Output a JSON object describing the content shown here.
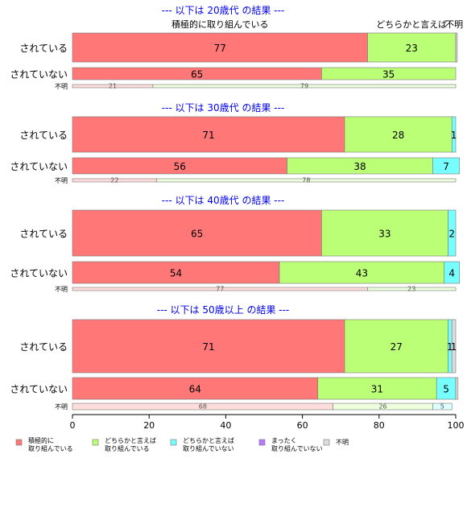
{
  "chart_data": {
    "type": "bar",
    "orientation": "horizontal",
    "stacked": true,
    "xlim": [
      0,
      100
    ],
    "x_ticks": [
      "0",
      "20",
      "40",
      "60",
      "80",
      "100"
    ],
    "legend": {
      "placement": "bottom",
      "entries": [
        {
          "key": "s1",
          "label": [
            "積極的に",
            "取り組んでいる"
          ],
          "color": "#ff7777"
        },
        {
          "key": "s2",
          "label": [
            "どちらかと言えば",
            "取り組んでいる"
          ],
          "color": "#bbff77"
        },
        {
          "key": "s3",
          "label": [
            "どちらかと言えば",
            "取り組んでいない"
          ],
          "color": "#77ffff"
        },
        {
          "key": "s4",
          "label": [
            "まったく",
            "取り組んでいない"
          ],
          "color": "#bb77ff"
        },
        {
          "key": "s5",
          "label": [
            "不明"
          ],
          "color": "#dddddd"
        }
      ]
    },
    "top_labels": [
      {
        "text": "積極的に取り組んでいる",
        "at": 38.5
      },
      {
        "text": "どちらかと言えば",
        "at": 88.5
      },
      {
        "text": "不明",
        "at": 99.6
      }
    ],
    "groups": [
      {
        "title": "--- 以下は 20歳代 の結果 ---",
        "rows": [
          {
            "label": "されている",
            "values": [
              77,
              23,
              0,
              0,
              0.4
            ],
            "labels": [
              "77",
              "23",
              "",
              "",
              ""
            ]
          },
          {
            "label": "されていない",
            "values": [
              65,
              35,
              0,
              0,
              0
            ],
            "labels": [
              "65",
              "35",
              "",
              "",
              ""
            ]
          },
          {
            "label": "不明",
            "values": [
              21,
              79,
              0,
              0,
              0
            ],
            "labels": [
              "21",
              "79",
              "",
              "",
              ""
            ]
          }
        ]
      },
      {
        "title": "--- 以下は 30歳代 の結果 ---",
        "rows": [
          {
            "label": "されている",
            "values": [
              71,
              28,
              1,
              0,
              0
            ],
            "labels": [
              "71",
              "28",
              "1",
              "",
              ""
            ]
          },
          {
            "label": "されていない",
            "values": [
              56,
              38,
              7,
              0,
              0
            ],
            "labels": [
              "56",
              "38",
              "7",
              "",
              ""
            ]
          },
          {
            "label": "不明",
            "values": [
              22,
              78,
              0,
              0,
              0
            ],
            "labels": [
              "22",
              "78",
              "",
              "",
              ""
            ]
          }
        ]
      },
      {
        "title": "--- 以下は 40歳代 の結果 ---",
        "rows": [
          {
            "label": "されている",
            "values": [
              65,
              33,
              2,
              0,
              0
            ],
            "labels": [
              "65",
              "33",
              "2",
              "",
              ""
            ]
          },
          {
            "label": "されていない",
            "values": [
              54,
              43,
              4,
              0,
              0
            ],
            "labels": [
              "54",
              "43",
              "4",
              "",
              ""
            ]
          },
          {
            "label": "不明",
            "values": [
              77,
              23,
              0,
              0,
              0
            ],
            "labels": [
              "77",
              "23",
              "",
              "",
              ""
            ]
          }
        ]
      },
      {
        "title": "--- 以下は 50歳以上 の結果 ---",
        "rows": [
          {
            "label": "されている",
            "values": [
              71,
              27,
              1,
              0,
              1
            ],
            "labels": [
              "71",
              "27",
              "1",
              "",
              "1"
            ]
          },
          {
            "label": "されていない",
            "values": [
              64,
              31,
              5,
              0,
              0.6
            ],
            "labels": [
              "64",
              "31",
              "5",
              "",
              ""
            ]
          },
          {
            "label": "不明",
            "values": [
              68,
              26,
              5,
              0,
              0
            ],
            "labels": [
              "68",
              "26",
              "5",
              "",
              ""
            ]
          }
        ]
      }
    ]
  }
}
